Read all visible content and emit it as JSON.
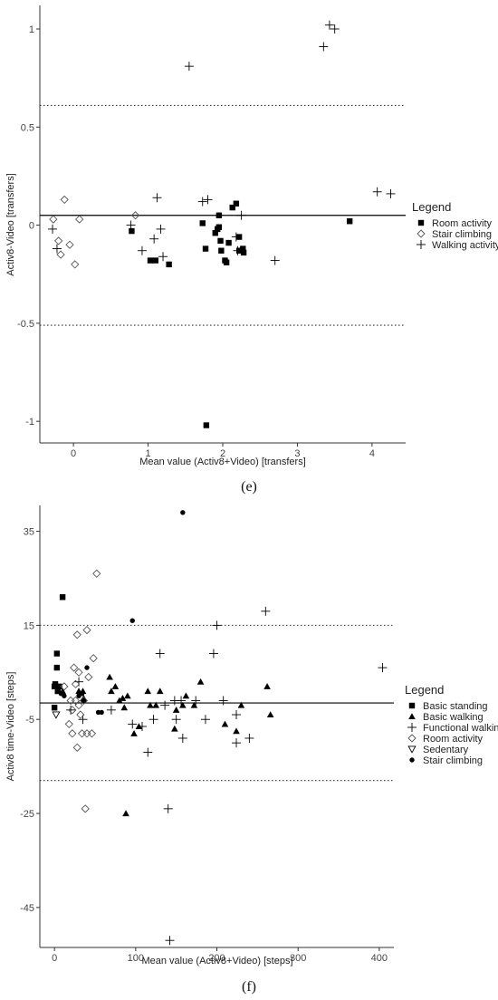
{
  "chart_data": [
    {
      "type": "scatter",
      "panel_label": "(e)",
      "xlabel": "Mean value (Activ8+Video) [transfers]",
      "ylabel": "Activ8-Video [transfers]",
      "xlim": [
        -0.45,
        4.45
      ],
      "ylim": [
        -1.11,
        1.12
      ],
      "xticks": [
        0,
        1,
        2,
        3,
        4
      ],
      "yticks": [
        -1,
        -0.5,
        0,
        0.5,
        1
      ],
      "mean_line": 0.05,
      "loa_upper": 0.61,
      "loa_lower": -0.51,
      "legend": {
        "title": "Legend",
        "position": "right"
      },
      "series": [
        {
          "name": "Room activity",
          "marker": "square-filled",
          "points": [
            [
              0.78,
              -0.03
            ],
            [
              1.03,
              -0.18
            ],
            [
              1.1,
              -0.18
            ],
            [
              1.28,
              -0.2
            ],
            [
              1.73,
              0.01
            ],
            [
              1.77,
              -0.12
            ],
            [
              1.78,
              -1.02
            ],
            [
              1.9,
              -0.04
            ],
            [
              1.93,
              -0.02
            ],
            [
              1.95,
              -0.01
            ],
            [
              1.95,
              0.05
            ],
            [
              1.97,
              -0.08
            ],
            [
              1.98,
              -0.13
            ],
            [
              2.03,
              -0.18
            ],
            [
              2.05,
              -0.19
            ],
            [
              2.08,
              -0.09
            ],
            [
              2.13,
              0.09
            ],
            [
              2.18,
              0.11
            ],
            [
              2.22,
              -0.06
            ],
            [
              2.22,
              -0.13
            ],
            [
              2.27,
              -0.12
            ],
            [
              2.28,
              -0.14
            ],
            [
              3.7,
              0.02
            ]
          ]
        },
        {
          "name": "Stair climbing",
          "marker": "diamond-open",
          "points": [
            [
              -0.27,
              0.03
            ],
            [
              -0.2,
              -0.08
            ],
            [
              -0.17,
              -0.15
            ],
            [
              -0.12,
              0.13
            ],
            [
              -0.05,
              -0.1
            ],
            [
              0.02,
              -0.2
            ],
            [
              0.08,
              0.03
            ],
            [
              0.83,
              0.05
            ]
          ]
        },
        {
          "name": "Walking activity",
          "marker": "plus",
          "points": [
            [
              -0.28,
              -0.02
            ],
            [
              -0.22,
              -0.12
            ],
            [
              0.77,
              0.0
            ],
            [
              0.92,
              -0.13
            ],
            [
              1.08,
              -0.07
            ],
            [
              1.12,
              0.14
            ],
            [
              1.17,
              -0.02
            ],
            [
              1.2,
              -0.16
            ],
            [
              1.55,
              0.81
            ],
            [
              1.73,
              0.12
            ],
            [
              1.8,
              0.13
            ],
            [
              2.18,
              -0.06
            ],
            [
              2.2,
              -0.13
            ],
            [
              2.25,
              0.05
            ],
            [
              2.7,
              -0.18
            ],
            [
              3.35,
              0.91
            ],
            [
              3.43,
              1.02
            ],
            [
              3.5,
              1.0
            ],
            [
              4.07,
              0.17
            ],
            [
              4.25,
              0.16
            ]
          ]
        }
      ]
    },
    {
      "type": "scatter",
      "panel_label": "(f)",
      "xlabel": "Mean value (Activ8+Video) [steps]",
      "ylabel": "Activ8 time-Video [steps]",
      "xlim": [
        -18,
        418
      ],
      "ylim": [
        -53.5,
        40.5
      ],
      "xticks": [
        0,
        100,
        200,
        300,
        400
      ],
      "yticks": [
        -45,
        -25,
        -5,
        15,
        35
      ],
      "mean_line": -1.5,
      "loa_upper": 15,
      "loa_lower": -18,
      "legend": {
        "title": "Legend",
        "position": "right"
      },
      "series": [
        {
          "name": "Basic standing",
          "marker": "square-filled",
          "points": [
            [
              0,
              -2.5
            ],
            [
              0,
              2
            ],
            [
              1,
              2.5
            ],
            [
              3,
              9
            ],
            [
              3,
              6
            ],
            [
              4,
              1
            ],
            [
              6,
              2
            ],
            [
              10,
              21
            ]
          ]
        },
        {
          "name": "Basic walking",
          "marker": "triangle-filled",
          "points": [
            [
              10,
              1
            ],
            [
              30,
              1
            ],
            [
              35,
              1
            ],
            [
              36,
              -0.5
            ],
            [
              68,
              4
            ],
            [
              70,
              1
            ],
            [
              75,
              2
            ],
            [
              80,
              -1
            ],
            [
              84,
              -0.5
            ],
            [
              86,
              -2.5
            ],
            [
              90,
              0
            ],
            [
              98,
              -8
            ],
            [
              104,
              -6.5
            ],
            [
              115,
              1
            ],
            [
              118,
              -2
            ],
            [
              125,
              -2
            ],
            [
              130,
              1
            ],
            [
              150,
              -3
            ],
            [
              148,
              -7
            ],
            [
              158,
              -2
            ],
            [
              162,
              0
            ],
            [
              172,
              -2
            ],
            [
              180,
              3
            ],
            [
              210,
              -6
            ],
            [
              224,
              -7.5
            ],
            [
              230,
              -2
            ],
            [
              262,
              2
            ],
            [
              266,
              -4
            ],
            [
              88,
              -25
            ]
          ]
        },
        {
          "name": "Functional walking",
          "marker": "plus",
          "points": [
            [
              20,
              -3
            ],
            [
              30,
              3
            ],
            [
              35,
              -5
            ],
            [
              70,
              -3
            ],
            [
              96,
              -6
            ],
            [
              108,
              -6.5
            ],
            [
              115,
              -12
            ],
            [
              122,
              -5
            ],
            [
              130,
              9
            ],
            [
              136,
              -2
            ],
            [
              140,
              -24
            ],
            [
              142,
              -52
            ],
            [
              148,
              -1
            ],
            [
              150,
              -5
            ],
            [
              156,
              -1
            ],
            [
              158,
              -9
            ],
            [
              174,
              -1
            ],
            [
              186,
              -5
            ],
            [
              196,
              9
            ],
            [
              200,
              15
            ],
            [
              208,
              -1
            ],
            [
              224,
              -4
            ],
            [
              224,
              -10
            ],
            [
              240,
              -9
            ],
            [
              260,
              18
            ],
            [
              404,
              6
            ]
          ]
        },
        {
          "name": "Room activity",
          "marker": "diamond-open",
          "points": [
            [
              12,
              2
            ],
            [
              18,
              -6
            ],
            [
              20,
              -1
            ],
            [
              22,
              -3
            ],
            [
              22,
              -8
            ],
            [
              24,
              6
            ],
            [
              26,
              -1
            ],
            [
              26,
              2.5
            ],
            [
              28,
              13
            ],
            [
              28,
              -11
            ],
            [
              30,
              -2
            ],
            [
              30,
              5
            ],
            [
              32,
              -4
            ],
            [
              34,
              -8
            ],
            [
              36,
              -1
            ],
            [
              38,
              -24
            ],
            [
              40,
              14
            ],
            [
              40,
              -8
            ],
            [
              42,
              4
            ],
            [
              46,
              -8
            ],
            [
              48,
              8
            ],
            [
              52,
              26
            ]
          ]
        },
        {
          "name": "Sedentary",
          "marker": "triangle-down-open",
          "points": [
            [
              2,
              -4
            ]
          ]
        },
        {
          "name": "Stair climbing",
          "marker": "circle-filled",
          "points": [
            [
              8,
              0.5
            ],
            [
              12,
              0
            ],
            [
              30,
              0
            ],
            [
              34,
              0.5
            ],
            [
              36,
              -1
            ],
            [
              40,
              6
            ],
            [
              54,
              -3.5
            ],
            [
              58,
              -3.5
            ],
            [
              96,
              16
            ],
            [
              158,
              39
            ]
          ]
        }
      ]
    }
  ]
}
